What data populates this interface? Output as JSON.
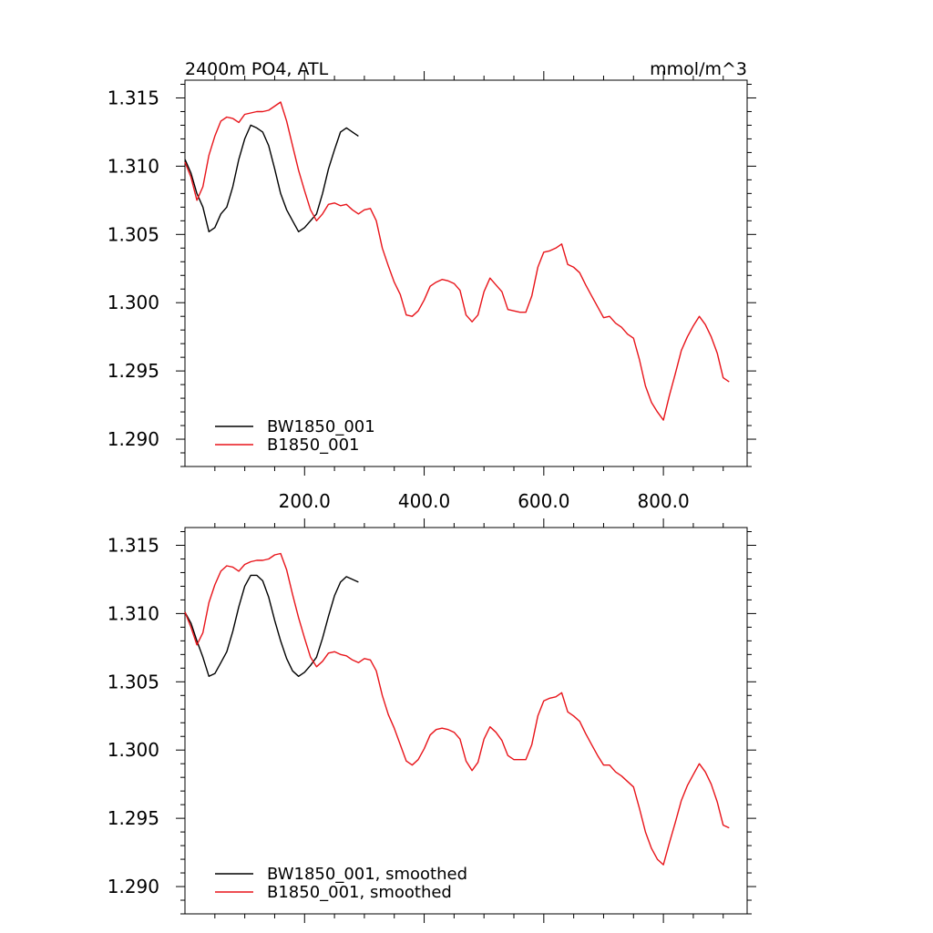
{
  "colors": {
    "bw": "#000000",
    "b": "#e8141a"
  },
  "chart_data": [
    {
      "type": "line",
      "title": "2400m PO4, ATL",
      "units": "mmol/m^3",
      "xlim": [
        0,
        940
      ],
      "ylim": [
        1.288,
        1.3163
      ],
      "x_ticks": [
        "200.0",
        "400.0",
        "600.0",
        "800.0"
      ],
      "x_tick_values": [
        200,
        400,
        600,
        800
      ],
      "y_ticks": [
        "1.315",
        "1.310",
        "1.305",
        "1.300",
        "1.295",
        "1.290"
      ],
      "y_tick_values": [
        1.315,
        1.31,
        1.305,
        1.3,
        1.295,
        1.29
      ],
      "legend_position": "bottom-left",
      "grid": false,
      "series": [
        {
          "name": "BW1850_001",
          "color": "#000000",
          "points": [
            [
              0,
              1.3105
            ],
            [
              10,
              1.3095
            ],
            [
              20,
              1.308
            ],
            [
              30,
              1.307
            ],
            [
              40,
              1.3052
            ],
            [
              50,
              1.3055
            ],
            [
              60,
              1.3065
            ],
            [
              70,
              1.307
            ],
            [
              80,
              1.3085
            ],
            [
              90,
              1.3105
            ],
            [
              100,
              1.312
            ],
            [
              110,
              1.313
            ],
            [
              120,
              1.3128
            ],
            [
              130,
              1.3125
            ],
            [
              140,
              1.3115
            ],
            [
              150,
              1.3098
            ],
            [
              160,
              1.308
            ],
            [
              170,
              1.3068
            ],
            [
              180,
              1.306
            ],
            [
              190,
              1.3052
            ],
            [
              200,
              1.3055
            ],
            [
              210,
              1.306
            ],
            [
              220,
              1.3065
            ],
            [
              230,
              1.308
            ],
            [
              240,
              1.3098
            ],
            [
              250,
              1.3112
            ],
            [
              260,
              1.3125
            ],
            [
              270,
              1.3128
            ],
            [
              280,
              1.3125
            ],
            [
              290,
              1.3122
            ]
          ]
        },
        {
          "name": "B1850_001",
          "color": "#e8141a",
          "points": [
            [
              0,
              1.3103
            ],
            [
              10,
              1.3092
            ],
            [
              20,
              1.3075
            ],
            [
              30,
              1.3085
            ],
            [
              40,
              1.3108
            ],
            [
              50,
              1.3122
            ],
            [
              60,
              1.3133
            ],
            [
              70,
              1.3136
            ],
            [
              80,
              1.3135
            ],
            [
              90,
              1.3132
            ],
            [
              100,
              1.3138
            ],
            [
              110,
              1.3139
            ],
            [
              120,
              1.314
            ],
            [
              130,
              1.314
            ],
            [
              140,
              1.3141
            ],
            [
              150,
              1.3144
            ],
            [
              160,
              1.3147
            ],
            [
              170,
              1.3133
            ],
            [
              180,
              1.3115
            ],
            [
              190,
              1.3097
            ],
            [
              200,
              1.3082
            ],
            [
              210,
              1.3068
            ],
            [
              220,
              1.306
            ],
            [
              230,
              1.3065
            ],
            [
              240,
              1.3072
            ],
            [
              250,
              1.3073
            ],
            [
              260,
              1.3071
            ],
            [
              270,
              1.3072
            ],
            [
              280,
              1.3068
            ],
            [
              290,
              1.3065
            ],
            [
              300,
              1.3068
            ],
            [
              310,
              1.3069
            ],
            [
              320,
              1.306
            ],
            [
              330,
              1.304
            ],
            [
              340,
              1.3027
            ],
            [
              350,
              1.3015
            ],
            [
              360,
              1.3006
            ],
            [
              370,
              1.2991
            ],
            [
              380,
              1.299
            ],
            [
              390,
              1.2994
            ],
            [
              400,
              1.3002
            ],
            [
              410,
              1.3012
            ],
            [
              420,
              1.3015
            ],
            [
              430,
              1.3017
            ],
            [
              440,
              1.3016
            ],
            [
              450,
              1.3014
            ],
            [
              460,
              1.3009
            ],
            [
              470,
              1.2991
            ],
            [
              480,
              1.2986
            ],
            [
              490,
              1.2991
            ],
            [
              500,
              1.3008
            ],
            [
              510,
              1.3018
            ],
            [
              520,
              1.3013
            ],
            [
              530,
              1.3008
            ],
            [
              540,
              1.2995
            ],
            [
              550,
              1.2994
            ],
            [
              560,
              1.2993
            ],
            [
              570,
              1.2993
            ],
            [
              580,
              1.3005
            ],
            [
              590,
              1.3026
            ],
            [
              600,
              1.3037
            ],
            [
              610,
              1.3038
            ],
            [
              620,
              1.304
            ],
            [
              630,
              1.3043
            ],
            [
              640,
              1.3028
            ],
            [
              650,
              1.3026
            ],
            [
              660,
              1.3022
            ],
            [
              670,
              1.3013
            ],
            [
              680,
              1.3005
            ],
            [
              690,
              1.2997
            ],
            [
              700,
              1.2989
            ],
            [
              710,
              1.299
            ],
            [
              720,
              1.2985
            ],
            [
              730,
              1.2982
            ],
            [
              740,
              1.2977
            ],
            [
              750,
              1.2974
            ],
            [
              760,
              1.2958
            ],
            [
              770,
              1.2939
            ],
            [
              780,
              1.2927
            ],
            [
              790,
              1.292
            ],
            [
              800,
              1.2914
            ],
            [
              810,
              1.2932
            ],
            [
              820,
              1.2948
            ],
            [
              830,
              1.2965
            ],
            [
              840,
              1.2975
            ],
            [
              850,
              1.2983
            ],
            [
              860,
              1.299
            ],
            [
              870,
              1.2984
            ],
            [
              880,
              1.2975
            ],
            [
              890,
              1.2963
            ],
            [
              900,
              1.2945
            ],
            [
              910,
              1.2942
            ]
          ]
        }
      ]
    },
    {
      "type": "line",
      "xlim": [
        0,
        940
      ],
      "ylim": [
        1.288,
        1.3163
      ],
      "y_ticks": [
        "1.315",
        "1.310",
        "1.305",
        "1.300",
        "1.295",
        "1.290"
      ],
      "y_tick_values": [
        1.315,
        1.31,
        1.305,
        1.3,
        1.295,
        1.29
      ],
      "x_tick_values": [
        200,
        400,
        600,
        800
      ],
      "legend_position": "bottom-left",
      "grid": false,
      "series": [
        {
          "name": "BW1850_001, smoothed",
          "color": "#000000",
          "points": [
            [
              0,
              1.3101
            ],
            [
              10,
              1.3093
            ],
            [
              20,
              1.308
            ],
            [
              30,
              1.3068
            ],
            [
              40,
              1.3054
            ],
            [
              50,
              1.3056
            ],
            [
              60,
              1.3064
            ],
            [
              70,
              1.3072
            ],
            [
              80,
              1.3087
            ],
            [
              90,
              1.3105
            ],
            [
              100,
              1.312
            ],
            [
              110,
              1.3128
            ],
            [
              120,
              1.3128
            ],
            [
              130,
              1.3124
            ],
            [
              140,
              1.3112
            ],
            [
              150,
              1.3095
            ],
            [
              160,
              1.308
            ],
            [
              170,
              1.3067
            ],
            [
              180,
              1.3058
            ],
            [
              190,
              1.3054
            ],
            [
              200,
              1.3057
            ],
            [
              210,
              1.3062
            ],
            [
              220,
              1.3068
            ],
            [
              230,
              1.3082
            ],
            [
              240,
              1.3098
            ],
            [
              250,
              1.3113
            ],
            [
              260,
              1.3123
            ],
            [
              270,
              1.3127
            ],
            [
              280,
              1.3125
            ],
            [
              290,
              1.3123
            ]
          ]
        },
        {
          "name": "B1850_001, smoothed",
          "color": "#e8141a",
          "points": [
            [
              0,
              1.3101
            ],
            [
              10,
              1.309
            ],
            [
              20,
              1.3077
            ],
            [
              30,
              1.3086
            ],
            [
              40,
              1.3108
            ],
            [
              50,
              1.3121
            ],
            [
              60,
              1.3131
            ],
            [
              70,
              1.3135
            ],
            [
              80,
              1.3134
            ],
            [
              90,
              1.3131
            ],
            [
              100,
              1.3136
            ],
            [
              110,
              1.3138
            ],
            [
              120,
              1.3139
            ],
            [
              130,
              1.3139
            ],
            [
              140,
              1.314
            ],
            [
              150,
              1.3143
            ],
            [
              160,
              1.3144
            ],
            [
              170,
              1.3132
            ],
            [
              180,
              1.3114
            ],
            [
              190,
              1.3097
            ],
            [
              200,
              1.3082
            ],
            [
              210,
              1.3068
            ],
            [
              220,
              1.3061
            ],
            [
              230,
              1.3065
            ],
            [
              240,
              1.3071
            ],
            [
              250,
              1.3072
            ],
            [
              260,
              1.307
            ],
            [
              270,
              1.3069
            ],
            [
              280,
              1.3066
            ],
            [
              290,
              1.3064
            ],
            [
              300,
              1.3067
            ],
            [
              310,
              1.3066
            ],
            [
              320,
              1.3058
            ],
            [
              330,
              1.304
            ],
            [
              340,
              1.3026
            ],
            [
              350,
              1.3016
            ],
            [
              360,
              1.3004
            ],
            [
              370,
              1.2992
            ],
            [
              380,
              1.2989
            ],
            [
              390,
              1.2993
            ],
            [
              400,
              1.3001
            ],
            [
              410,
              1.3011
            ],
            [
              420,
              1.3015
            ],
            [
              430,
              1.3016
            ],
            [
              440,
              1.3015
            ],
            [
              450,
              1.3013
            ],
            [
              460,
              1.3008
            ],
            [
              470,
              1.2992
            ],
            [
              480,
              1.2985
            ],
            [
              490,
              1.2991
            ],
            [
              500,
              1.3008
            ],
            [
              510,
              1.3017
            ],
            [
              520,
              1.3013
            ],
            [
              530,
              1.3007
            ],
            [
              540,
              1.2996
            ],
            [
              550,
              1.2993
            ],
            [
              560,
              1.2993
            ],
            [
              570,
              1.2993
            ],
            [
              580,
              1.3004
            ],
            [
              590,
              1.3025
            ],
            [
              600,
              1.3036
            ],
            [
              610,
              1.3038
            ],
            [
              620,
              1.3039
            ],
            [
              630,
              1.3042
            ],
            [
              640,
              1.3028
            ],
            [
              650,
              1.3025
            ],
            [
              660,
              1.3021
            ],
            [
              670,
              1.3012
            ],
            [
              680,
              1.3004
            ],
            [
              690,
              1.2996
            ],
            [
              700,
              1.2989
            ],
            [
              710,
              1.2989
            ],
            [
              720,
              1.2984
            ],
            [
              730,
              1.2981
            ],
            [
              740,
              1.2977
            ],
            [
              750,
              1.2973
            ],
            [
              760,
              1.2957
            ],
            [
              770,
              1.294
            ],
            [
              780,
              1.2928
            ],
            [
              790,
              1.292
            ],
            [
              800,
              1.2916
            ],
            [
              810,
              1.2932
            ],
            [
              820,
              1.2947
            ],
            [
              830,
              1.2963
            ],
            [
              840,
              1.2974
            ],
            [
              850,
              1.2982
            ],
            [
              860,
              1.299
            ],
            [
              870,
              1.2984
            ],
            [
              880,
              1.2975
            ],
            [
              890,
              1.2962
            ],
            [
              900,
              1.2945
            ],
            [
              910,
              1.2943
            ]
          ]
        }
      ]
    }
  ]
}
